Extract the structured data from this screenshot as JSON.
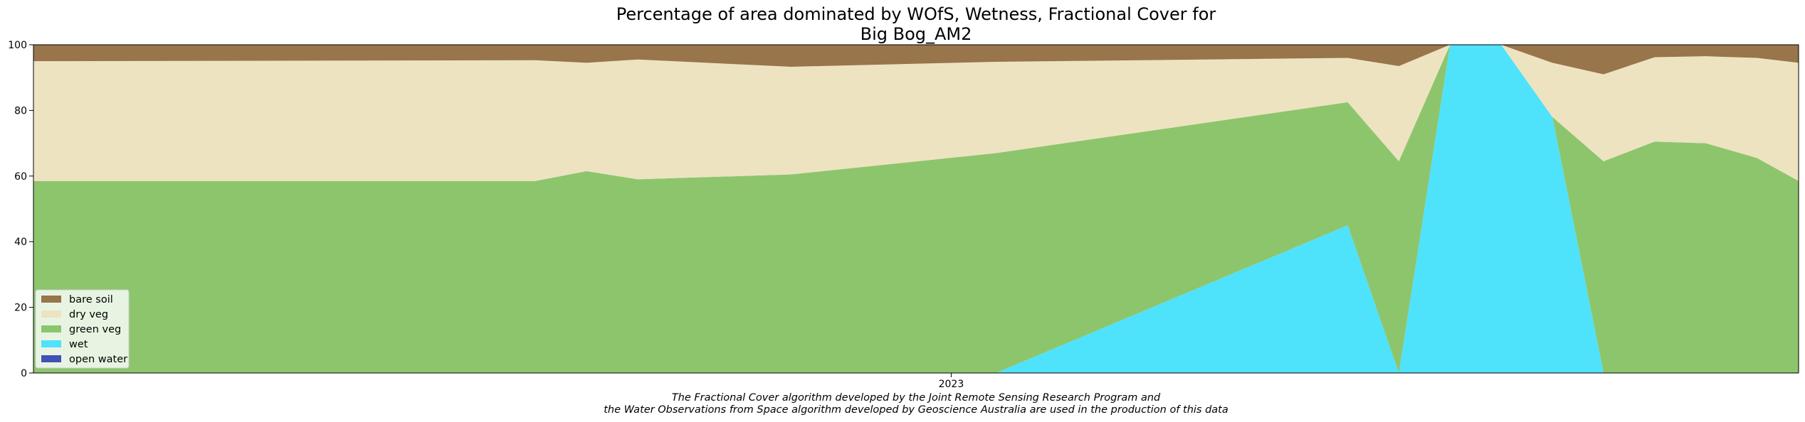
{
  "chart_data": {
    "type": "area",
    "stacked": true,
    "title": [
      "Percentage of area dominated by WOfS, Wetness, Fractional Cover for",
      "Big Bog_AM2"
    ],
    "caption": [
      "The Fractional Cover algorithm developed by the Joint Remote Sensing Research Program and",
      "the Water Observations from Space algorithm developed by Geoscience Australia are used in the production of this data"
    ],
    "xlabel": "",
    "ylabel": "",
    "ylim": [
      0,
      100
    ],
    "yticks": [
      0,
      20,
      40,
      60,
      80,
      100
    ],
    "xlim": [
      "2022-03-20",
      "2023-09-23"
    ],
    "xticks": [
      {
        "date": "2023-01-01",
        "label": "2023"
      }
    ],
    "grid": false,
    "legend": "lower-left",
    "x": [
      "2022-03-20",
      "2022-08-24",
      "2022-09-09",
      "2022-09-25",
      "2022-11-12",
      "2023-01-15",
      "2023-05-05",
      "2023-05-21",
      "2023-06-06",
      "2023-06-22",
      "2023-07-08",
      "2023-07-24",
      "2023-08-09",
      "2023-08-25",
      "2023-09-10",
      "2023-09-23"
    ],
    "series": [
      {
        "name": "open water",
        "color": "#4052b5",
        "values": [
          0,
          0,
          0,
          0,
          0,
          0,
          0,
          0,
          0,
          0,
          0,
          0,
          0,
          0,
          0,
          0
        ]
      },
      {
        "name": "wet",
        "color": "#4fe2fb",
        "values": [
          0,
          0,
          0,
          0,
          0,
          0,
          45,
          0,
          100,
          100,
          78,
          0,
          0,
          0,
          0,
          0
        ]
      },
      {
        "name": "green veg",
        "color": "#8dc56d",
        "values": [
          58.5,
          58.5,
          61.5,
          59,
          60.5,
          67,
          37.5,
          64.5,
          0,
          0,
          0,
          64.5,
          70.5,
          70,
          65.5,
          58.5
        ]
      },
      {
        "name": "dry veg",
        "color": "#ede3c1",
        "values": [
          36.5,
          36.8,
          33,
          36.5,
          32.8,
          27.8,
          13.5,
          29,
          0,
          0,
          16.5,
          26.5,
          25.7,
          26.5,
          30.5,
          36
        ]
      },
      {
        "name": "bare soil",
        "color": "#98754a",
        "values": [
          5,
          4.7,
          5.5,
          4.5,
          6.7,
          5.2,
          4,
          6.5,
          0,
          0,
          5.5,
          9,
          3.8,
          3.5,
          4,
          5.5
        ]
      }
    ],
    "legend_order": [
      "bare soil",
      "dry veg",
      "green veg",
      "wet",
      "open water"
    ]
  }
}
